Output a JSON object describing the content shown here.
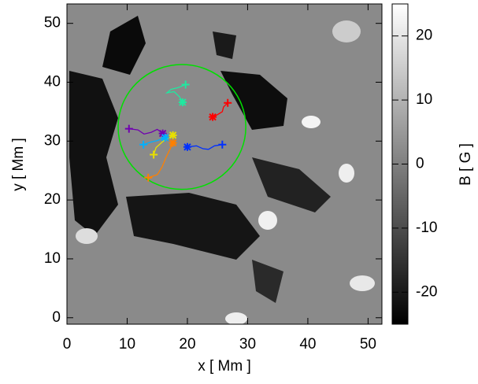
{
  "chart_data": {
    "type": "tracks",
    "xlabel": "x [ Mm ]",
    "ylabel": "y [ Mm ]",
    "colorbar_label": "B [ G ]",
    "xlim": [
      0,
      52.3
    ],
    "ylim": [
      -1.1,
      53.3
    ],
    "xticks": [
      0,
      10,
      20,
      30,
      40,
      50
    ],
    "yticks": [
      0,
      10,
      20,
      30,
      40,
      50
    ],
    "clim": [
      -25,
      25
    ],
    "cticks": [
      -20,
      -10,
      0,
      10,
      20
    ],
    "circle": {
      "center": [
        19.1,
        32.4
      ],
      "radius": 10.6,
      "color": "#00e000"
    },
    "series": [
      {
        "color": "#20e8a0",
        "x": [
          19.7,
          18.5,
          17.3,
          16.6,
          17.8,
          18.7,
          19.2
        ],
        "y": [
          39.6,
          39.1,
          38.8,
          38.2,
          38.4,
          37.5,
          36.6
        ]
      },
      {
        "color": "#ff0000",
        "x": [
          26.7,
          26.0,
          25.8,
          25.0,
          24.2
        ],
        "y": [
          36.5,
          35.8,
          35.0,
          34.5,
          34.1
        ]
      },
      {
        "color": "#0030ff",
        "x": [
          25.8,
          24.5,
          23.5,
          22.6,
          21.5,
          20.0
        ],
        "y": [
          29.4,
          29.2,
          28.6,
          28.7,
          29.2,
          29.0
        ]
      },
      {
        "color": "#7000b0",
        "x": [
          10.3,
          11.8,
          12.8,
          14.0,
          15.0,
          15.9
        ],
        "y": [
          32.1,
          31.9,
          31.2,
          31.5,
          32.0,
          31.3
        ]
      },
      {
        "color": "#e8e000",
        "x": [
          14.4,
          14.8,
          16.0,
          17.0,
          17.6
        ],
        "y": [
          27.7,
          28.9,
          30.0,
          30.6,
          31.0
        ]
      },
      {
        "color": "#00b0ff",
        "x": [
          12.7,
          13.8,
          15.0,
          16.3
        ],
        "y": [
          29.4,
          29.8,
          30.1,
          30.6
        ]
      },
      {
        "color": "#ff8000",
        "x": [
          13.5,
          15.0,
          15.8,
          16.4,
          17.0,
          17.6
        ],
        "y": [
          23.8,
          24.3,
          25.6,
          27.1,
          28.4,
          29.7
        ]
      }
    ]
  }
}
